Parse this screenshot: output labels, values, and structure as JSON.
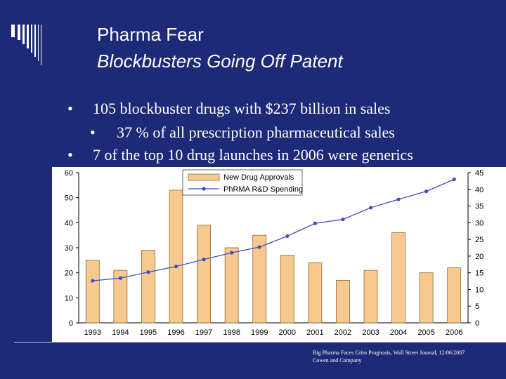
{
  "title": "Pharma Fear",
  "subtitle": "Blockbusters Going Off Patent",
  "bullets": [
    {
      "level": 1,
      "bullet": "•",
      "text": "105 blockbuster drugs with $237 billion in sales"
    },
    {
      "level": 2,
      "bullet": "•",
      "text": "37 % of all prescription pharmaceutical sales"
    },
    {
      "level": 1,
      "bullet": "•",
      "text": "7 of the top 10 drug launches in 2006 were generics"
    }
  ],
  "source_lines": [
    "Big Pharma Faces Grim Prognosis, Wall Street Journal, 12/06/2007",
    "Cowen and Company"
  ],
  "colors": {
    "background": "#1d2a78",
    "bar_fill": "#f7c98f",
    "bar_stroke": "#8a6a3a",
    "line": "#3f4fc0"
  },
  "chart_data": {
    "type": "bar+line",
    "categories": [
      "1993",
      "1994",
      "1995",
      "1996",
      "1997",
      "1998",
      "1999",
      "2000",
      "2001",
      "2002",
      "2003",
      "2004",
      "2005",
      "2006"
    ],
    "series": [
      {
        "name": "New Drug Approvals",
        "type": "bar",
        "axis": "left",
        "values": [
          25,
          21,
          29,
          53,
          39,
          30,
          35,
          27,
          24,
          17,
          21,
          36,
          20,
          22
        ]
      },
      {
        "name": "PhRMA R&D Spending",
        "type": "line",
        "axis": "right",
        "values": [
          12.6,
          13.4,
          15.2,
          16.9,
          19.0,
          21.0,
          22.7,
          26.0,
          29.8,
          31.0,
          34.5,
          37.0,
          39.4,
          43.0
        ]
      }
    ],
    "ylim_left": [
      0,
      60
    ],
    "yticks_left": [
      "0",
      "10",
      "20",
      "30",
      "40",
      "50",
      "60"
    ],
    "ylim_right": [
      0,
      45
    ],
    "yticks_right": [
      "0",
      "5",
      "10",
      "15",
      "20",
      "25",
      "30",
      "35",
      "40",
      "45"
    ],
    "legend_position": "top-center"
  }
}
